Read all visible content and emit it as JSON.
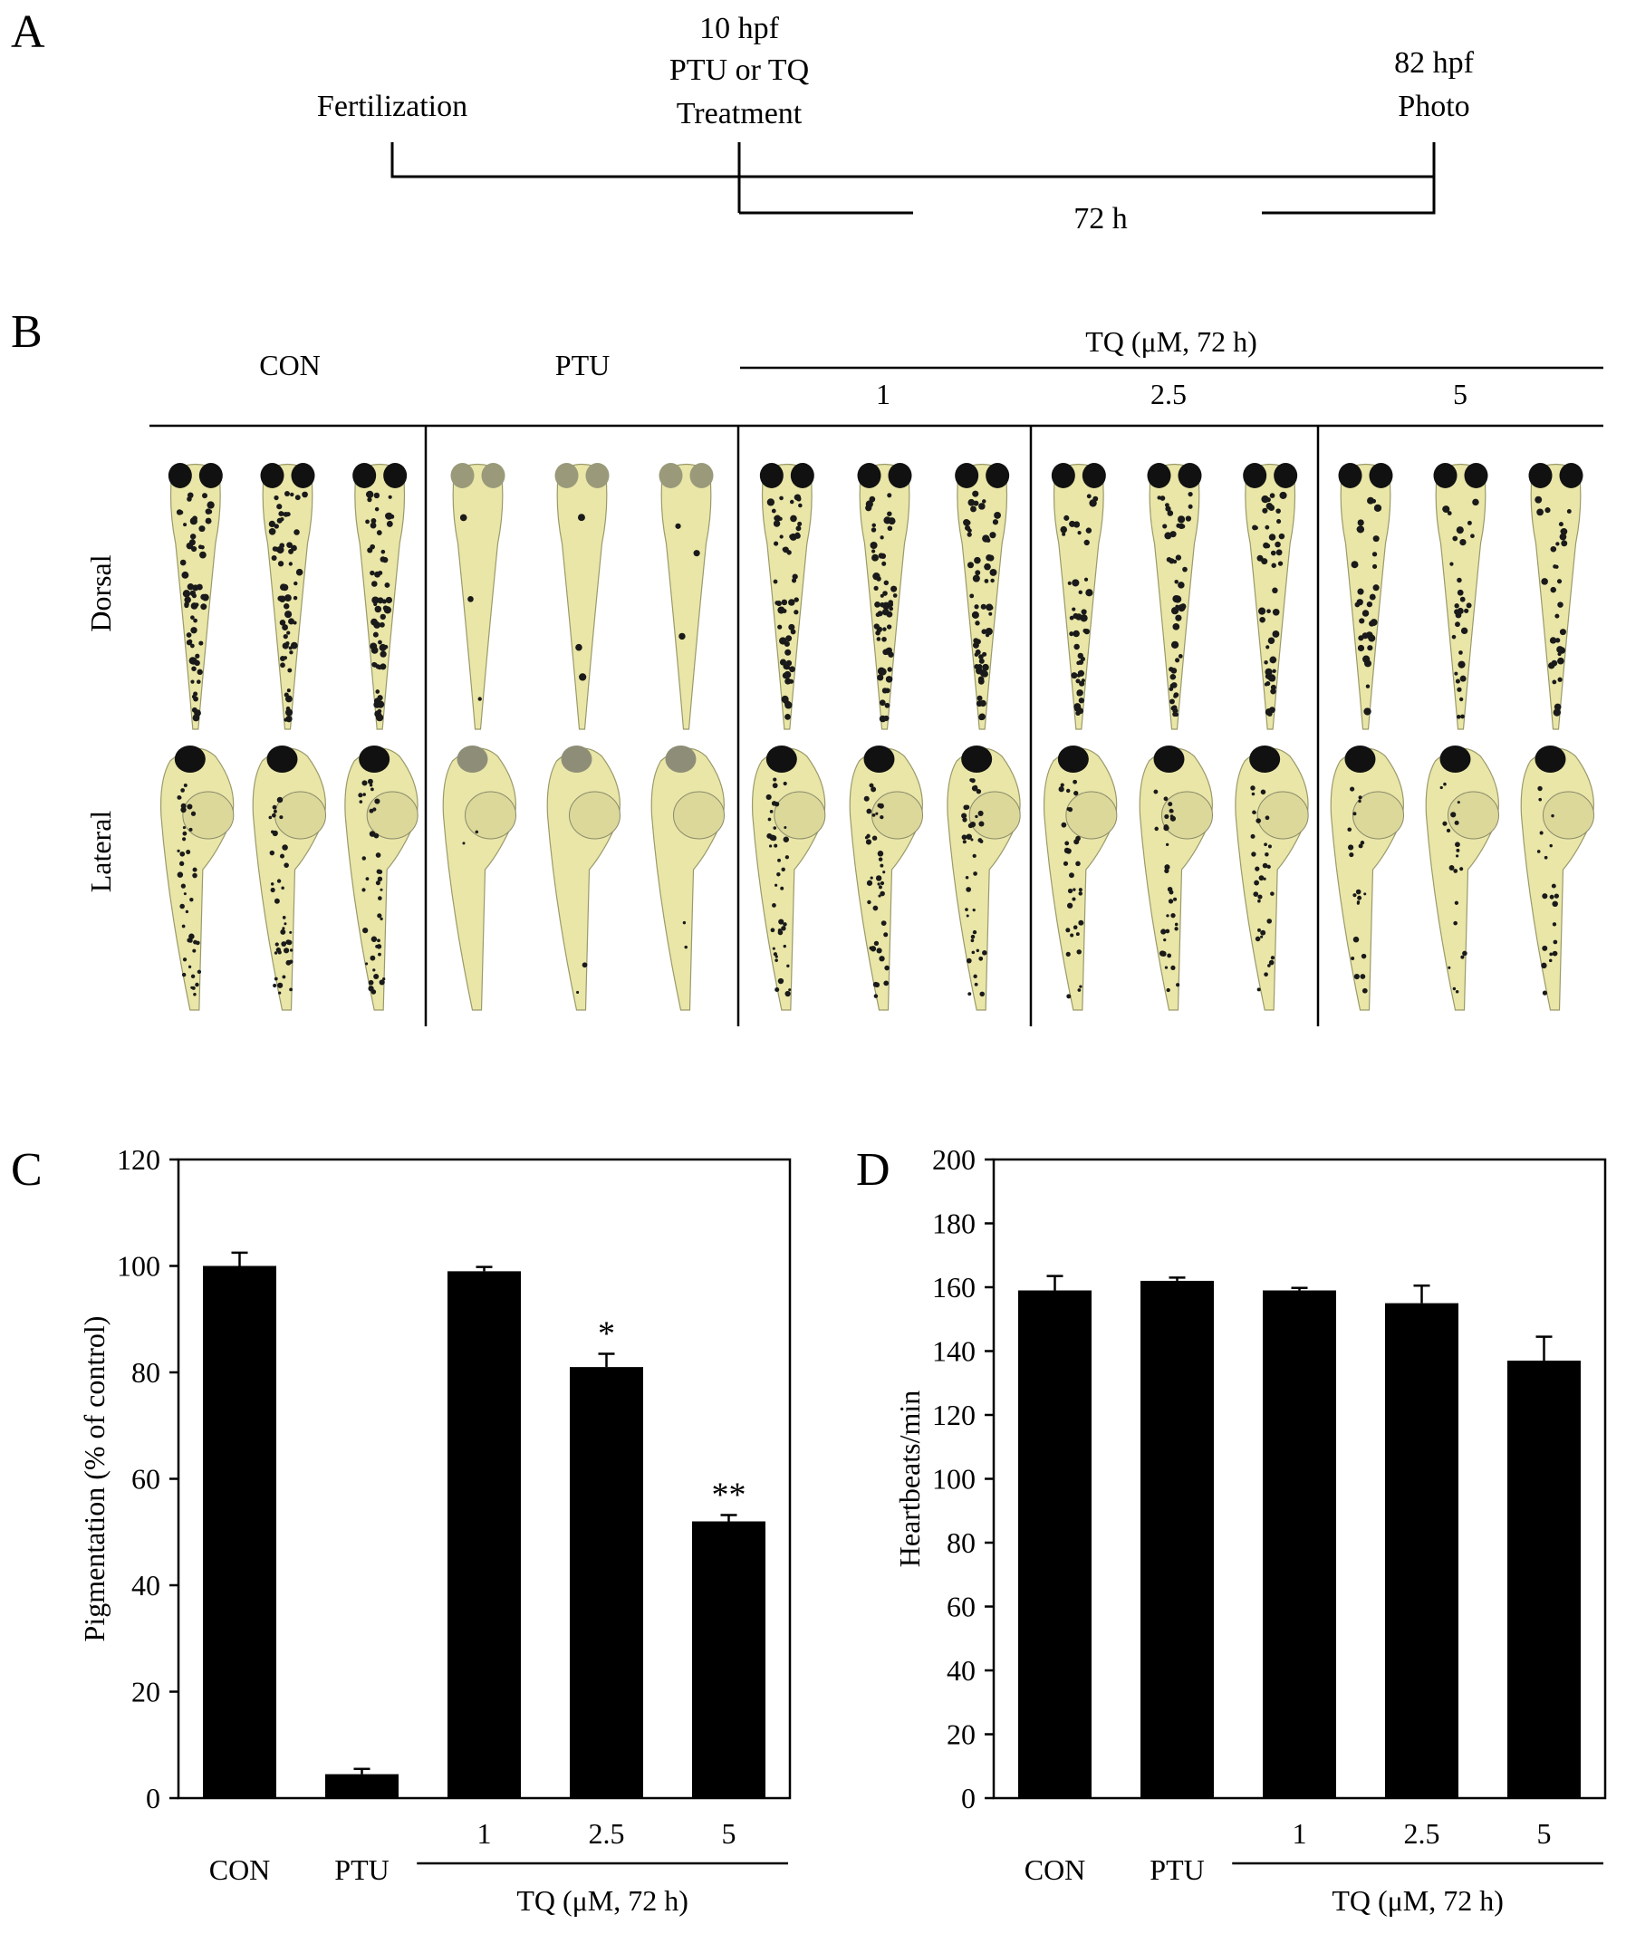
{
  "panel_labels": {
    "a": "A",
    "b": "B",
    "c": "C",
    "d": "D"
  },
  "timeline": {
    "fertilization": "Fertilization",
    "treatment_line1": "10 hpf",
    "treatment_line2": "PTU or TQ",
    "treatment_line3": "Treatment",
    "end_line1": "82 hpf",
    "end_line2": "Photo",
    "duration": "72 h"
  },
  "panel_b": {
    "columns": [
      "CON",
      "PTU"
    ],
    "tq_header": "TQ (μM, 72 h)",
    "tq_doses": [
      "1",
      "2.5",
      "5"
    ],
    "rows": [
      "Dorsal",
      "Lateral"
    ],
    "larvae_per_group": 3,
    "pigment_levels": [
      1.0,
      0.05,
      0.99,
      0.81,
      0.52
    ]
  },
  "colors": {
    "bar": "#000000",
    "larva_body": "#e9e6a8",
    "larva_yolk": "#dcd89a",
    "pigment": "#1a1a1a",
    "eye": "#111111"
  },
  "chart_data": [
    {
      "type": "bar",
      "panel": "C",
      "categories": [
        "CON",
        "PTU",
        "1",
        "2.5",
        "5"
      ],
      "values": [
        100,
        4.5,
        99,
        81,
        52
      ],
      "errors": [
        2.5,
        1,
        0.8,
        2.5,
        1.2
      ],
      "significance": [
        "",
        "",
        "",
        "*",
        "**"
      ],
      "group_label": "TQ (μM, 72 h)",
      "ylabel": "Pigmentation (% of control)",
      "ylim": [
        0,
        120
      ],
      "yticks": [
        0,
        20,
        40,
        60,
        80,
        100,
        120
      ]
    },
    {
      "type": "bar",
      "panel": "D",
      "categories": [
        "CON",
        "PTU",
        "1",
        "2.5",
        "5"
      ],
      "values": [
        159,
        162,
        159,
        155,
        137
      ],
      "errors": [
        4.5,
        1,
        0.8,
        5.5,
        7.5
      ],
      "significance": [
        "",
        "",
        "",
        "",
        ""
      ],
      "group_label": "TQ (μM, 72 h)",
      "ylabel": "Heartbeats/min",
      "ylim": [
        0,
        200
      ],
      "yticks": [
        0,
        20,
        40,
        60,
        80,
        100,
        120,
        140,
        160,
        180,
        200
      ]
    }
  ]
}
